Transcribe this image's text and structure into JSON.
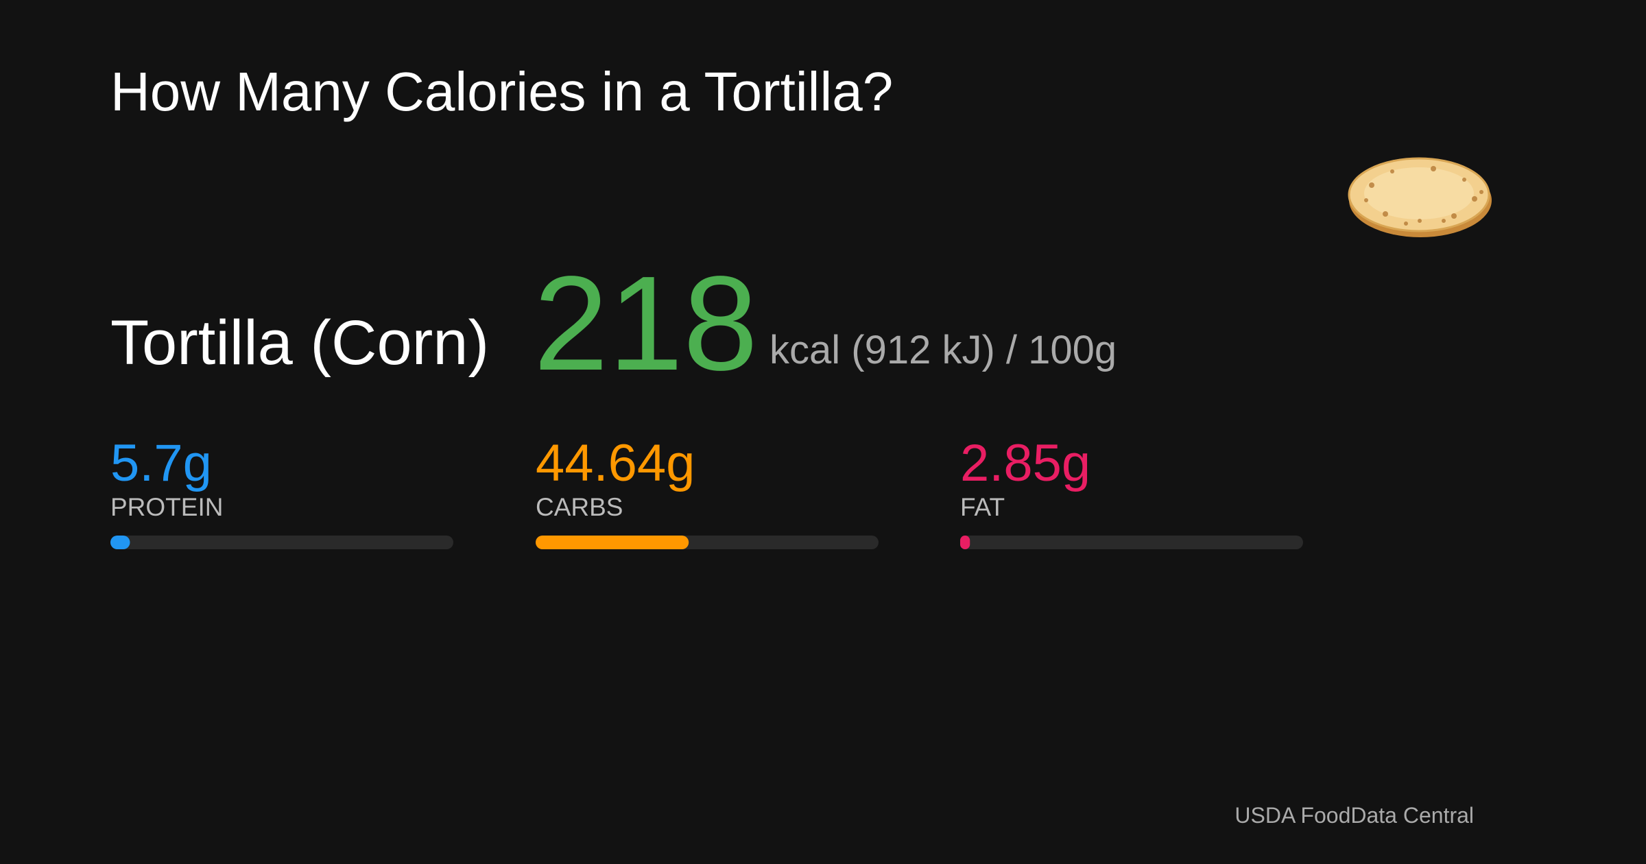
{
  "title": "How Many Calories in a Tortilla?",
  "food": {
    "name": "Tortilla (Corn)",
    "calories": 218,
    "unit_text": "kcal (912 kJ) / 100g",
    "calories_color": "#4caf50"
  },
  "macros": {
    "bar_range": [
      0,
      100
    ],
    "items": [
      {
        "name": "PROTEIN",
        "value": 5.7,
        "value_label": "5.7g",
        "color": "#2196f3"
      },
      {
        "name": "CARBS",
        "value": 44.64,
        "value_label": "44.64g",
        "color": "#ff9800"
      },
      {
        "name": "FAT",
        "value": 2.85,
        "value_label": "2.85g",
        "color": "#e91e63"
      }
    ]
  },
  "source": "USDA FoodData Central"
}
